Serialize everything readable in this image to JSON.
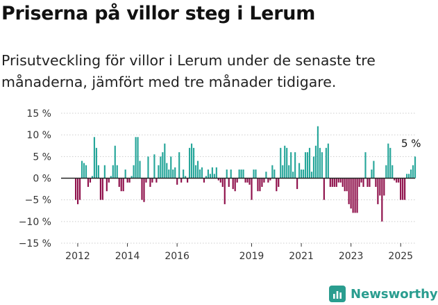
{
  "title": "Priserna på villor steg i Lerum",
  "subtitle": "Prisutveckling för villor i Lerum under de senaste tre månaderna, jämfört med tre månader tidigare.",
  "brand": {
    "name": "Newsworthy",
    "icon": "newsworthy-logo-icon"
  },
  "colors": {
    "positive": "#26a69a",
    "negative": "#8e0f4a",
    "zero_line": "#222222",
    "grid": "#cccccc",
    "brand": "#2a9d8f"
  },
  "chart_data": {
    "type": "bar",
    "xlabel": "",
    "ylabel": "",
    "ylim": [
      -15,
      15
    ],
    "y_ticks": [
      15,
      10,
      5,
      0,
      -5,
      -10,
      -15
    ],
    "y_tick_labels": [
      "15 %",
      "10 %",
      "5 %",
      "0 %",
      "−5 %",
      "−10 %",
      "−15 %"
    ],
    "x_ticks": [
      2012,
      2014,
      2016,
      2019,
      2021,
      2023,
      2025
    ],
    "x_tick_labels": [
      "2012",
      "2014",
      "2016",
      "2019",
      "2021",
      "2023",
      "2025"
    ],
    "x_range": [
      2011.33,
      2025.58
    ],
    "grid": true,
    "annotation": {
      "label": "5 %",
      "x": 2025.42,
      "y": 5
    },
    "start": 2011.92,
    "step": 0.0833,
    "values": [
      -5.0,
      -6.0,
      -5.0,
      4.0,
      3.5,
      3.0,
      -2.0,
      -1.0,
      0.5,
      9.5,
      7.0,
      3.0,
      -5.0,
      -5.0,
      3.0,
      -3.0,
      -1.0,
      0.5,
      3.0,
      7.5,
      3.0,
      -2.0,
      -3.0,
      -3.0,
      2.0,
      -1.0,
      -1.0,
      0.5,
      3.0,
      9.5,
      9.5,
      4.0,
      -5.0,
      -5.5,
      -1.0,
      5.0,
      -2.0,
      -1.0,
      5.5,
      -1.0,
      3.0,
      5.0,
      6.0,
      8.0,
      3.5,
      2.0,
      5.0,
      2.0,
      2.5,
      -1.5,
      6.0,
      -1.0,
      2.0,
      0.5,
      -1.0,
      7.0,
      8.0,
      7.0,
      3.0,
      4.0,
      2.0,
      2.5,
      -1.0,
      0.5,
      2.0,
      1.0,
      2.5,
      1.0,
      2.5,
      -0.5,
      -1.0,
      -2.0,
      -6.0,
      2.0,
      -2.0,
      2.0,
      -2.5,
      -3.0,
      -1.0,
      2.0,
      2.0,
      2.0,
      -1.0,
      -1.0,
      -1.5,
      -5.0,
      2.0,
      2.0,
      -3.0,
      -3.0,
      -2.0,
      -1.0,
      1.5,
      -1.0,
      -0.5,
      3.0,
      2.0,
      -3.0,
      -2.0,
      7.0,
      3.0,
      7.5,
      7.0,
      3.0,
      6.0,
      1.5,
      6.0,
      -2.5,
      3.5,
      2.0,
      2.0,
      6.0,
      6.0,
      7.0,
      1.5,
      5.0,
      7.5,
      12.0,
      7.0,
      6.0,
      -5.0,
      7.0,
      8.0,
      -2.0,
      -2.0,
      -2.0,
      -2.0,
      -1.0,
      -1.0,
      -2.0,
      -3.0,
      -3.0,
      -6.0,
      -7.0,
      -8.0,
      -8.0,
      -8.0,
      -2.0,
      -1.0,
      -2.0,
      6.0,
      -2.0,
      -2.0,
      2.0,
      4.0,
      -2.0,
      -6.0,
      -4.0,
      -10.0,
      -4.0,
      3.0,
      8.0,
      7.0,
      3.0,
      -0.5,
      -1.0,
      -1.0,
      -5.0,
      -5.0,
      -5.0,
      1.0,
      1.0,
      2.0,
      3.0,
      5.0
    ]
  }
}
